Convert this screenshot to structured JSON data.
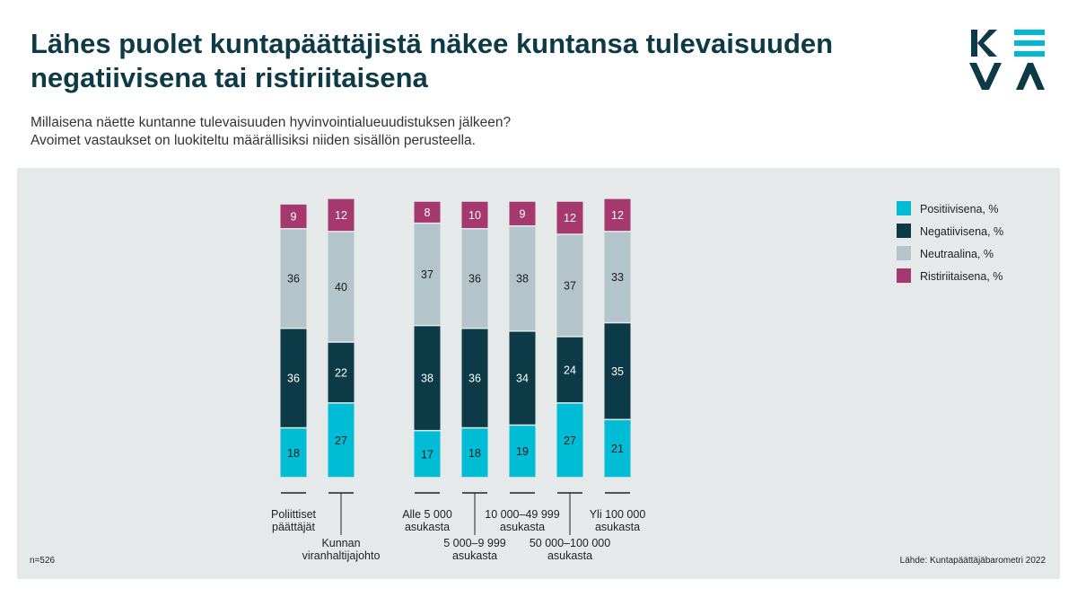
{
  "header": {
    "title": "Lähes puolet kuntapäättäjistä näkee kuntansa tulevaisuuden negatiivisena tai ristiriitaisena",
    "subtitle_line1": "Millaisena näette kuntanne tulevaisuuden hyvinvointialueuudistuksen jälkeen?",
    "subtitle_line2": "Avoimet vastaukset on luokiteltu määrällisiksi niiden sisällön perusteella."
  },
  "logo": {
    "text": "KEVA",
    "color": "#0d3a47",
    "accent_color": "#00b8d4"
  },
  "footer": {
    "n": "n=526",
    "source": "Lähde: Kuntapäättäjäbarometri 2022"
  },
  "chart_data": {
    "type": "bar",
    "stacked": true,
    "orientation": "vertical",
    "ylim": [
      0,
      100
    ],
    "grid": false,
    "legend_position": "top-right",
    "categories": [
      "Poliittiset päättäjät",
      "Kunnan viranhaltijajohto",
      "Alle 5 000 asukasta",
      "5 000–9 999 asukasta",
      "10 000–49 999 asukasta",
      "50 000–100 000 asukasta",
      "Yli 100 000 asukasta"
    ],
    "category_label_lines": [
      [
        "Poliittiset",
        "päättäjät"
      ],
      [
        "Kunnan",
        "viranhaltijajohto"
      ],
      [
        "Alle 5 000",
        "asukasta"
      ],
      [
        "5 000–9 999",
        "asukasta"
      ],
      [
        "10 000–49 999",
        "asukasta"
      ],
      [
        "50 000–100 000",
        "asukasta"
      ],
      [
        "Yli 100 000",
        "asukasta"
      ]
    ],
    "series": [
      {
        "name": "Positiivisena, %",
        "color": "#00bcd4",
        "label_color": "#1a1a1a",
        "values": [
          18,
          27,
          17,
          18,
          19,
          27,
          21
        ]
      },
      {
        "name": "Negatiivisena, %",
        "color": "#0d3a47",
        "label_color": "#ffffff",
        "values": [
          36,
          22,
          38,
          36,
          34,
          24,
          35
        ]
      },
      {
        "name": "Neutraalina, %",
        "color": "#b3c5ca",
        "label_color": "#1a1a1a",
        "values": [
          36,
          40,
          37,
          36,
          38,
          37,
          33
        ]
      },
      {
        "name": "Ristiriitaisena, %",
        "color": "#a5396f",
        "label_color": "#ffffff",
        "values": [
          9,
          12,
          8,
          10,
          9,
          12,
          12
        ]
      }
    ]
  }
}
